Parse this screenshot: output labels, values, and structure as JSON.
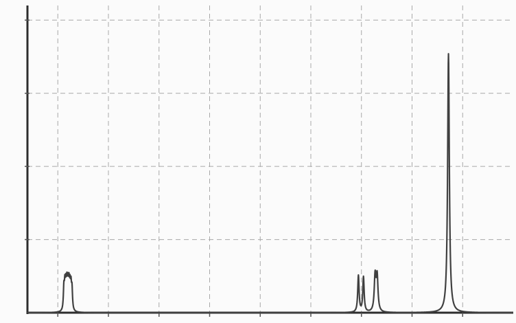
{
  "chart_data": {
    "type": "line",
    "title": "",
    "xlabel": "",
    "ylabel": "",
    "xlim": [
      9.6,
      0
    ],
    "ylim": [
      0,
      1.05
    ],
    "x_ticks": [
      9,
      8,
      7,
      6,
      5,
      4,
      3,
      2,
      1
    ],
    "y_ticks": [
      0.25,
      0.5,
      0.75,
      1.0
    ],
    "x_tick_labels": [
      "",
      "",
      "",
      "",
      "",
      "",
      "",
      "",
      ""
    ],
    "y_tick_labels": [
      "",
      "",
      "",
      ""
    ],
    "grid": true,
    "colors": {
      "trace": "#404040",
      "grid": "#a8a8a8",
      "axis": "#2d2d2d"
    },
    "series": [
      {
        "peaks": [
          {
            "center": 8.88,
            "height": 0.075,
            "width": 0.012
          },
          {
            "center": 8.86,
            "height": 0.078,
            "width": 0.012
          },
          {
            "center": 8.84,
            "height": 0.074,
            "width": 0.012
          },
          {
            "center": 8.82,
            "height": 0.078,
            "width": 0.012
          },
          {
            "center": 8.8,
            "height": 0.075,
            "width": 0.012
          },
          {
            "center": 8.78,
            "height": 0.077,
            "width": 0.012
          },
          {
            "center": 8.76,
            "height": 0.072,
            "width": 0.012
          },
          {
            "center": 8.74,
            "height": 0.074,
            "width": 0.012
          },
          {
            "center": 8.72,
            "height": 0.07,
            "width": 0.012
          },
          {
            "center": 3.06,
            "height": 0.125,
            "width": 0.016
          },
          {
            "center": 2.96,
            "height": 0.12,
            "width": 0.016
          },
          {
            "center": 2.73,
            "height": 0.12,
            "width": 0.02
          },
          {
            "center": 2.69,
            "height": 0.118,
            "width": 0.02
          },
          {
            "center": 1.28,
            "height": 0.885,
            "width": 0.02
          }
        ]
      }
    ]
  }
}
